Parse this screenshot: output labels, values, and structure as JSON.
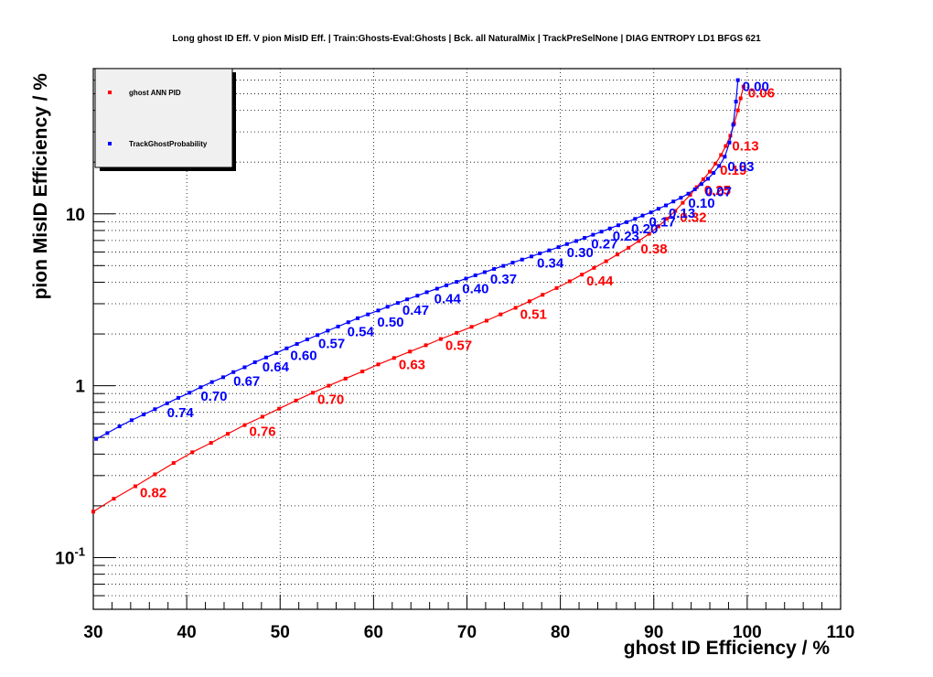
{
  "chart_data": {
    "type": "line",
    "title": "Long ghost ID Eff. V pion MisID Eff. | Train:Ghosts-Eval:Ghosts | Bck. all NaturalMix | TrackPreSelNone | DIAG ENTROPY LD1 BFGS 621",
    "xlabel": "ghost ID Efficiency / %",
    "ylabel": "pion MisID Efficiency / %",
    "xlim": [
      30,
      110
    ],
    "ylim": [
      0.05,
      70
    ],
    "yscale": "log",
    "grid": true,
    "legend_position": "top-left",
    "x_ticks": [
      "30",
      "40",
      "50",
      "60",
      "70",
      "80",
      "90",
      "100",
      "110"
    ],
    "y_ticks": [
      {
        "value": 0.1,
        "base": "10",
        "exp": "-1"
      },
      {
        "value": 1,
        "base": "1",
        "exp": ""
      },
      {
        "value": 10,
        "base": "10",
        "exp": ""
      }
    ],
    "series": [
      {
        "name": "ghost ANN PID",
        "color": "#ff0000",
        "points": [
          [
            30.0,
            0.185
          ],
          [
            32.2,
            0.22
          ],
          [
            34.5,
            0.26
          ],
          [
            36.6,
            0.305
          ],
          [
            38.6,
            0.355
          ],
          [
            40.6,
            0.41
          ],
          [
            42.6,
            0.465
          ],
          [
            44.4,
            0.525
          ],
          [
            46.2,
            0.59
          ],
          [
            48.1,
            0.66
          ],
          [
            49.9,
            0.735
          ],
          [
            51.7,
            0.82
          ],
          [
            53.5,
            0.91
          ],
          [
            55.2,
            1.0
          ],
          [
            57.0,
            1.1
          ],
          [
            58.8,
            1.21
          ],
          [
            60.5,
            1.33
          ],
          [
            62.2,
            1.45
          ],
          [
            63.9,
            1.58
          ],
          [
            65.6,
            1.72
          ],
          [
            67.2,
            1.87
          ],
          [
            68.9,
            2.03
          ],
          [
            70.5,
            2.2
          ],
          [
            72.1,
            2.39
          ],
          [
            73.6,
            2.6
          ],
          [
            75.2,
            2.84
          ],
          [
            76.7,
            3.1
          ],
          [
            78.1,
            3.38
          ],
          [
            79.6,
            3.7
          ],
          [
            81.0,
            4.05
          ],
          [
            82.3,
            4.43
          ],
          [
            83.6,
            4.85
          ],
          [
            84.9,
            5.3
          ],
          [
            86.1,
            5.8
          ],
          [
            87.3,
            6.35
          ],
          [
            88.4,
            6.95
          ],
          [
            89.5,
            7.65
          ],
          [
            90.5,
            8.45
          ],
          [
            91.4,
            9.35
          ],
          [
            92.3,
            10.4
          ],
          [
            93.1,
            11.6
          ],
          [
            93.9,
            12.9
          ],
          [
            94.6,
            14.3
          ],
          [
            95.3,
            15.9
          ],
          [
            96.0,
            17.6
          ],
          [
            96.6,
            19.6
          ],
          [
            97.2,
            22.0
          ],
          [
            97.7,
            24.8
          ],
          [
            98.2,
            28.5
          ],
          [
            98.6,
            33.5
          ],
          [
            99.0,
            40.0
          ],
          [
            99.3,
            47.0
          ],
          [
            99.6,
            55.0
          ]
        ],
        "cut_labels": [
          {
            "text": "0.06",
            "x": 99.6,
            "y": 55
          },
          {
            "text": "0.13",
            "x": 97.9,
            "y": 27
          },
          {
            "text": "0.19",
            "x": 96.6,
            "y": 19.6
          },
          {
            "text": "0.25",
            "x": 94.9,
            "y": 14.9
          },
          {
            "text": "0.32",
            "x": 92.3,
            "y": 10.4
          },
          {
            "text": "0.38",
            "x": 88.1,
            "y": 6.8
          },
          {
            "text": "0.44",
            "x": 82.3,
            "y": 4.43
          },
          {
            "text": "0.51",
            "x": 75.2,
            "y": 2.84
          },
          {
            "text": "0.57",
            "x": 67.2,
            "y": 1.87
          },
          {
            "text": "0.63",
            "x": 62.2,
            "y": 1.45
          },
          {
            "text": "0.70",
            "x": 53.5,
            "y": 0.91
          },
          {
            "text": "0.76",
            "x": 46.2,
            "y": 0.59
          },
          {
            "text": "0.82",
            "x": 34.5,
            "y": 0.26
          }
        ]
      },
      {
        "name": "TrackGhostProbability",
        "color": "#0000ff",
        "points": [
          [
            30.3,
            0.49
          ],
          [
            31.5,
            0.53
          ],
          [
            32.8,
            0.58
          ],
          [
            34.1,
            0.63
          ],
          [
            35.4,
            0.68
          ],
          [
            36.6,
            0.73
          ],
          [
            37.9,
            0.79
          ],
          [
            39.1,
            0.85
          ],
          [
            40.3,
            0.91
          ],
          [
            41.5,
            0.98
          ],
          [
            42.7,
            1.05
          ],
          [
            43.9,
            1.12
          ],
          [
            45.0,
            1.2
          ],
          [
            46.2,
            1.28
          ],
          [
            47.3,
            1.37
          ],
          [
            48.5,
            1.46
          ],
          [
            49.6,
            1.55
          ],
          [
            50.7,
            1.65
          ],
          [
            51.8,
            1.75
          ],
          [
            52.9,
            1.86
          ],
          [
            54.0,
            1.97
          ],
          [
            55.1,
            2.09
          ],
          [
            56.2,
            2.21
          ],
          [
            57.3,
            2.34
          ],
          [
            58.3,
            2.47
          ],
          [
            59.4,
            2.6
          ],
          [
            60.5,
            2.74
          ],
          [
            61.5,
            2.88
          ],
          [
            62.6,
            3.03
          ],
          [
            63.6,
            3.18
          ],
          [
            64.7,
            3.34
          ],
          [
            65.7,
            3.5
          ],
          [
            66.8,
            3.67
          ],
          [
            67.8,
            3.84
          ],
          [
            68.9,
            4.02
          ],
          [
            69.9,
            4.2
          ],
          [
            70.9,
            4.39
          ],
          [
            71.9,
            4.58
          ],
          [
            72.9,
            4.78
          ],
          [
            73.9,
            4.98
          ],
          [
            74.9,
            5.2
          ],
          [
            75.9,
            5.42
          ],
          [
            76.9,
            5.65
          ],
          [
            77.8,
            5.89
          ],
          [
            78.8,
            6.13
          ],
          [
            79.8,
            6.4
          ],
          [
            80.7,
            6.67
          ],
          [
            81.7,
            6.95
          ],
          [
            82.6,
            7.25
          ],
          [
            83.5,
            7.56
          ],
          [
            84.4,
            7.88
          ],
          [
            85.3,
            8.22
          ],
          [
            86.2,
            8.58
          ],
          [
            87.1,
            8.95
          ],
          [
            88.0,
            9.35
          ],
          [
            88.8,
            9.77
          ],
          [
            89.7,
            10.2
          ],
          [
            90.5,
            10.7
          ],
          [
            91.3,
            11.2
          ],
          [
            92.1,
            11.8
          ],
          [
            92.9,
            12.4
          ],
          [
            93.7,
            13.1
          ],
          [
            94.4,
            13.9
          ],
          [
            95.1,
            14.9
          ],
          [
            95.8,
            16.0
          ],
          [
            96.4,
            17.3
          ],
          [
            97.0,
            19.0
          ],
          [
            97.6,
            21.5
          ],
          [
            98.1,
            26.0
          ],
          [
            98.5,
            33.0
          ],
          [
            98.8,
            45.0
          ],
          [
            99.0,
            60.0
          ]
        ],
        "cut_labels": [
          {
            "text": "0.00",
            "x": 99.0,
            "y": 60
          },
          {
            "text": "0.03",
            "x": 97.4,
            "y": 20.5
          },
          {
            "text": "0.07",
            "x": 95.0,
            "y": 14.7
          },
          {
            "text": "0.10",
            "x": 93.2,
            "y": 12.6
          },
          {
            "text": "0.13",
            "x": 91.1,
            "y": 11.0
          },
          {
            "text": "0.17",
            "x": 89.0,
            "y": 9.8
          },
          {
            "text": "0.20",
            "x": 87.1,
            "y": 8.95
          },
          {
            "text": "0.23",
            "x": 85.1,
            "y": 8.1
          },
          {
            "text": "0.27",
            "x": 82.8,
            "y": 7.3
          },
          {
            "text": "0.30",
            "x": 80.2,
            "y": 6.5
          },
          {
            "text": "0.34",
            "x": 77.0,
            "y": 5.65
          },
          {
            "text": "0.37",
            "x": 72.0,
            "y": 4.55
          },
          {
            "text": "0.40",
            "x": 69.0,
            "y": 4.0
          },
          {
            "text": "0.44",
            "x": 66.0,
            "y": 3.5
          },
          {
            "text": "0.47",
            "x": 62.6,
            "y": 3.0
          },
          {
            "text": "0.50",
            "x": 59.9,
            "y": 2.55
          },
          {
            "text": "0.54",
            "x": 56.7,
            "y": 2.25
          },
          {
            "text": "0.57",
            "x": 53.6,
            "y": 1.92
          },
          {
            "text": "0.60",
            "x": 50.6,
            "y": 1.63
          },
          {
            "text": "0.64",
            "x": 47.6,
            "y": 1.4
          },
          {
            "text": "0.67",
            "x": 44.5,
            "y": 1.16
          },
          {
            "text": "0.70",
            "x": 41.0,
            "y": 0.95
          },
          {
            "text": "0.74",
            "x": 37.4,
            "y": 0.76
          }
        ]
      }
    ]
  }
}
